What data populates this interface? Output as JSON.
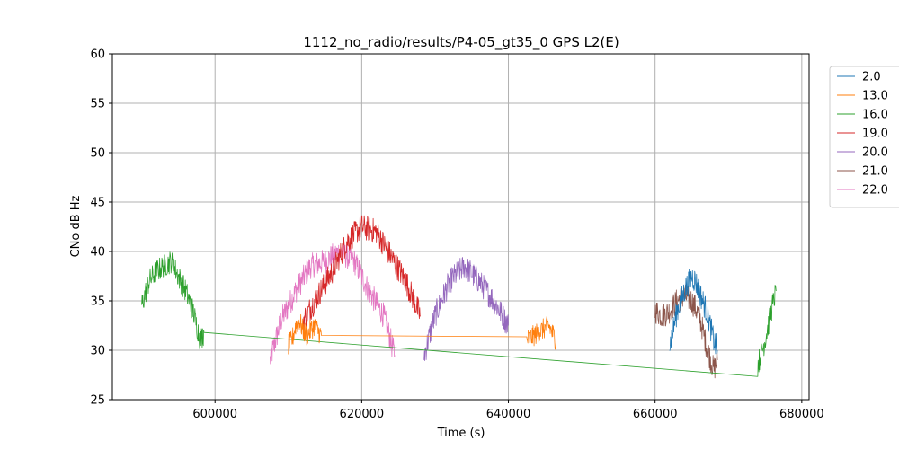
{
  "chart_data": {
    "type": "line",
    "title": "1112_no_radio/results/P4-05_gt35_0 GPS L2(E)",
    "xlabel": "Time (s)",
    "ylabel": "CNo dB Hz",
    "xlim": [
      586000,
      681000
    ],
    "ylim": [
      25,
      60
    ],
    "xticks": [
      600000,
      620000,
      640000,
      660000,
      680000
    ],
    "xtick_labels": [
      "600000",
      "620000",
      "640000",
      "660000",
      "680000"
    ],
    "yticks": [
      25,
      30,
      35,
      40,
      45,
      50,
      55,
      60
    ],
    "ytick_labels": [
      "25",
      "30",
      "35",
      "40",
      "45",
      "50",
      "55",
      "60"
    ],
    "grid": true,
    "legend_position": "outside-right-top",
    "series": [
      {
        "name": "2.0",
        "color": "#1f77b4",
        "noise": 1.3,
        "x": [
          662000,
          663000,
          664000,
          665000,
          665500,
          666000,
          667000,
          668000,
          668500
        ],
        "y": [
          30.5,
          34,
          36,
          37.5,
          37,
          36,
          34,
          31,
          30
        ]
      },
      {
        "name": "13.0",
        "color": "#ff7f0e",
        "noise": 1.1,
        "x": [
          610000,
          610500,
          611000,
          611500,
          612000,
          612500,
          613000,
          613500,
          614000,
          614500,
          642500,
          643500,
          644500,
          645500,
          646500
        ],
        "y": [
          30.5,
          31,
          32.5,
          33,
          32,
          31.5,
          32,
          32.5,
          32,
          31.5,
          31,
          31.5,
          32,
          32.5,
          31
        ]
      },
      {
        "name": "16.0",
        "color": "#2ca02c",
        "noise": 1.2,
        "x": [
          590000,
          591000,
          592000,
          593000,
          594000,
          595000,
          596000,
          597000,
          598000,
          598500,
          674000,
          675000,
          676000,
          676500
        ],
        "y": [
          34.5,
          37,
          38,
          38.5,
          39,
          37.5,
          36,
          34,
          31,
          31.8,
          28.5,
          31,
          34.5,
          36
        ]
      },
      {
        "name": "19.0",
        "color": "#d62728",
        "noise": 1.3,
        "x": [
          612000,
          614000,
          616000,
          618000,
          620000,
          622000,
          624000,
          626000,
          628000
        ],
        "y": [
          33,
          35.5,
          38,
          41,
          42.5,
          42,
          39.5,
          37,
          33.5
        ]
      },
      {
        "name": "20.0",
        "color": "#9467bd",
        "noise": 1.3,
        "x": [
          628500,
          630000,
          632000,
          634000,
          636000,
          638000,
          640000
        ],
        "y": [
          29.5,
          33.5,
          37,
          38.5,
          37,
          35,
          32.5
        ]
      },
      {
        "name": "21.0",
        "color": "#8c564b",
        "noise": 1.3,
        "x": [
          660000,
          661000,
          662000,
          663000,
          664000,
          665000,
          666000,
          667000,
          668000,
          668500
        ],
        "y": [
          34,
          33.5,
          34,
          35,
          35.5,
          35,
          33.5,
          30.5,
          28,
          29
        ]
      },
      {
        "name": "22.0",
        "color": "#e377c2",
        "noise": 1.3,
        "x": [
          607500,
          609000,
          611000,
          613000,
          615000,
          617000,
          619000,
          621000,
          623000,
          624500
        ],
        "y": [
          29,
          33,
          36,
          38.5,
          39,
          40,
          39,
          36,
          33.5,
          29.5
        ]
      }
    ]
  }
}
